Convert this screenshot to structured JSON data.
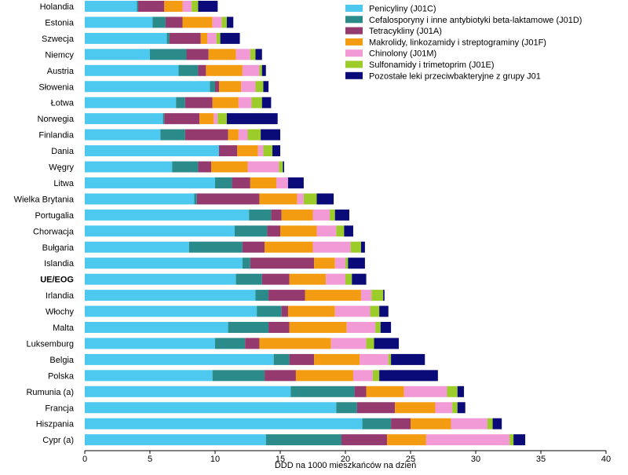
{
  "chart_data": {
    "type": "bar",
    "orientation": "horizontal",
    "stacked": true,
    "xlabel": "DDD na 1000 mieszkańców na dzień",
    "ylabel": "",
    "xlim": [
      0,
      40
    ],
    "xticks": [
      0,
      5,
      10,
      15,
      20,
      25,
      30,
      35,
      40
    ],
    "grid": false,
    "legend_position": "top-right",
    "highlight_category": "UE/EOG",
    "categories": [
      "Holandia",
      "Estonia",
      "Szwecja",
      "Niemcy",
      "Austria",
      "Słowenia",
      "Łotwa",
      "Norwegia",
      "Finlandia",
      "Dania",
      "Węgry",
      "Litwa",
      "Wielka Brytania",
      "Portugalia",
      "Chorwacja",
      "Bułgaria",
      "Islandia",
      "UE/EOG",
      "Irlandia",
      "Włochy",
      "Malta",
      "Luksemburg",
      "Belgia",
      "Polska",
      "Rumunia (a)",
      "Francja",
      "Hiszpania",
      "Cypr (a)"
    ],
    "series": [
      {
        "name": "Penicyliny (J01C)",
        "color": "#4dc8ef",
        "values": [
          4.0,
          5.2,
          6.3,
          5.0,
          7.2,
          9.6,
          7.0,
          6.0,
          5.8,
          10.3,
          6.7,
          10.0,
          8.4,
          12.6,
          11.5,
          8.0,
          12.1,
          11.6,
          13.1,
          13.2,
          11.0,
          10.0,
          14.5,
          9.8,
          15.8,
          19.3,
          21.3,
          13.9
        ]
      },
      {
        "name": "Cefalosporyny i inne antybiotyki beta-laktamowe (J01D)",
        "color": "#2b8b8a",
        "values": [
          0.1,
          1.0,
          0.2,
          2.8,
          1.5,
          0.4,
          0.7,
          0.1,
          1.9,
          0.0,
          2.0,
          1.3,
          0.2,
          1.7,
          2.5,
          4.1,
          0.6,
          2.0,
          1.0,
          1.9,
          3.1,
          2.3,
          1.2,
          4.0,
          4.9,
          1.6,
          2.2,
          5.8
        ]
      },
      {
        "name": "Tetracykliny (J01A)",
        "color": "#943a6e",
        "values": [
          2.0,
          1.3,
          2.4,
          1.7,
          0.6,
          0.3,
          2.1,
          2.7,
          3.3,
          1.4,
          1.0,
          1.4,
          4.8,
          0.8,
          1.0,
          1.7,
          4.9,
          2.1,
          2.8,
          0.5,
          1.6,
          1.1,
          1.9,
          2.4,
          0.9,
          2.9,
          1.5,
          3.5
        ]
      },
      {
        "name": "Makrolidy, linkozamidy i streptograminy (J01F)",
        "color": "#f39c12",
        "values": [
          1.4,
          2.3,
          0.5,
          2.1,
          2.8,
          1.7,
          2.0,
          1.1,
          0.8,
          1.6,
          2.8,
          2.0,
          2.9,
          2.4,
          2.8,
          3.7,
          1.6,
          2.8,
          4.3,
          3.6,
          4.4,
          5.5,
          3.5,
          4.4,
          2.9,
          3.1,
          3.1,
          3.0
        ]
      },
      {
        "name": "Chinolony (J01M)",
        "color": "#f29ad5",
        "values": [
          0.7,
          0.7,
          0.7,
          1.1,
          1.3,
          1.1,
          1.0,
          0.3,
          0.7,
          0.4,
          2.4,
          0.9,
          0.5,
          1.3,
          1.5,
          2.9,
          0.8,
          1.5,
          0.8,
          2.7,
          2.2,
          2.7,
          2.2,
          1.5,
          3.3,
          1.3,
          2.8,
          6.4
        ]
      },
      {
        "name": "Sulfonamidy i trimetoprim  (J01E)",
        "color": "#9ccc2a",
        "values": [
          0.5,
          0.4,
          0.3,
          0.4,
          0.2,
          0.6,
          0.8,
          0.7,
          1.0,
          0.7,
          0.3,
          0.0,
          1.0,
          0.4,
          0.6,
          0.8,
          0.2,
          0.5,
          0.9,
          0.7,
          0.4,
          0.6,
          0.2,
          0.5,
          0.8,
          0.4,
          0.4,
          0.3
        ]
      },
      {
        "name": "Pozostałe leki przeciwbakteryjne z grupy J01",
        "color": "#0a0a78",
        "values": [
          1.5,
          0.5,
          1.5,
          0.5,
          0.3,
          0.4,
          0.7,
          3.9,
          1.5,
          0.6,
          0.1,
          1.2,
          1.3,
          1.1,
          0.7,
          0.3,
          1.3,
          1.1,
          0.1,
          0.7,
          0.8,
          1.9,
          2.6,
          4.5,
          0.5,
          0.6,
          0.7,
          0.9
        ]
      }
    ]
  }
}
